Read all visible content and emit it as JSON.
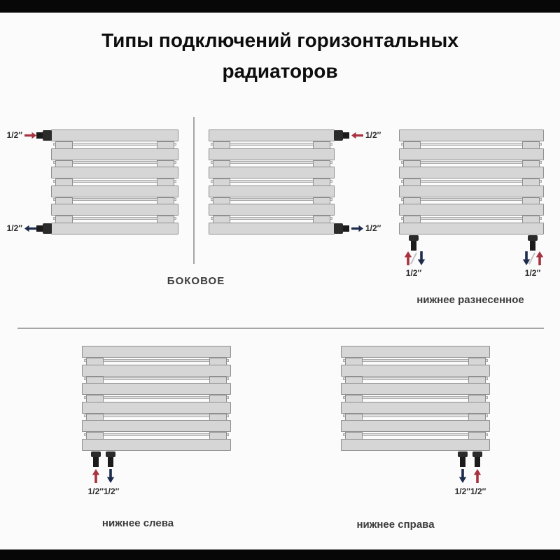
{
  "title": {
    "line1": "Типы подключений горизонтальных",
    "line2": "радиаторов"
  },
  "pipe_size_label": "1/2″",
  "captions": {
    "side": "БОКОВОЕ",
    "bottom_spread": "нижнее разнесенное",
    "bottom_left": "нижнее слева",
    "bottom_right": "нижнее справа"
  },
  "radiators": {
    "slat_count": 6
  },
  "colors": {
    "supply_arrow_red": "#a8323f",
    "return_arrow_navy": "#1d2b4d",
    "radiator_fill": "#d6d6d6",
    "radiator_border": "#8f8f8f",
    "divider_gray": "#a6a6a6",
    "frame_bar_black": "#070707",
    "caption_text": "#3b3b3b"
  }
}
